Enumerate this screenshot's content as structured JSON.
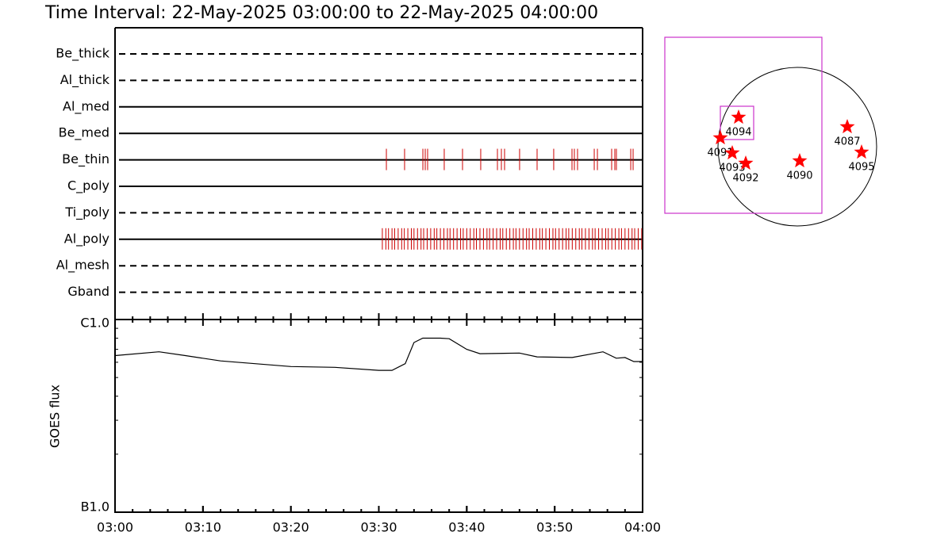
{
  "title": "Time Interval: 22-May-2025 03:00:00 to 22-May-2025 04:00:00",
  "chart_data": [
    {
      "type": "timeline",
      "xlim": [
        0,
        60
      ],
      "event_color": "#cc0000",
      "rows": [
        {
          "name": "Be_thick",
          "style": "dashed",
          "events": []
        },
        {
          "name": "Al_thick",
          "style": "dashed",
          "events": []
        },
        {
          "name": "Al_med",
          "style": "solid",
          "events": []
        },
        {
          "name": "Be_med",
          "style": "solid",
          "events": []
        },
        {
          "name": "Be_thin",
          "style": "solid",
          "events": [
            30.86,
            32.93,
            35.01,
            35.28,
            35.55,
            37.44,
            39.52,
            41.59,
            43.49,
            43.94,
            44.3,
            46.01,
            48.0,
            49.89,
            51.97,
            52.24,
            52.6,
            54.5,
            54.86,
            56.48,
            56.84,
            57.02,
            58.65,
            58.92
          ]
        },
        {
          "name": "C_poly",
          "style": "solid",
          "events": []
        },
        {
          "name": "Ti_poly",
          "style": "dashed",
          "events": []
        },
        {
          "name": "Al_poly",
          "style": "solid",
          "events": [
            30.4,
            30.8,
            31.1,
            31.5,
            31.8,
            32.2,
            32.6,
            32.9,
            33.3,
            33.7,
            34.0,
            34.4,
            34.8,
            35.1,
            35.5,
            35.9,
            36.3,
            36.6,
            37.0,
            37.4,
            37.8,
            38.1,
            38.5,
            38.9,
            39.3,
            39.6,
            40.0,
            40.4,
            40.8,
            41.1,
            41.5,
            41.9,
            42.3,
            42.6,
            43.0,
            43.4,
            43.8,
            44.1,
            44.5,
            44.9,
            45.3,
            45.6,
            46.0,
            46.4,
            46.8,
            47.1,
            47.5,
            47.9,
            48.3,
            48.6,
            49.0,
            49.4,
            49.8,
            50.1,
            50.5,
            50.9,
            51.3,
            51.6,
            52.0,
            52.4,
            52.8,
            53.1,
            53.5,
            53.9,
            54.3,
            54.6,
            55.0,
            55.4,
            55.8,
            56.1,
            56.5,
            56.9,
            57.3,
            57.6,
            58.0,
            58.4,
            58.8,
            59.1,
            59.5,
            59.9
          ]
        },
        {
          "name": "Al_mesh",
          "style": "dashed",
          "events": []
        },
        {
          "name": "Gband",
          "style": "dashed",
          "events": []
        }
      ]
    },
    {
      "type": "line",
      "ylabel": "GOES flux",
      "log_y": true,
      "color": "#000000",
      "x": [
        0,
        5,
        8,
        12,
        20,
        25,
        30,
        31.5,
        33,
        34,
        35,
        37,
        38,
        40,
        41.5,
        46,
        48,
        52,
        55.5,
        57,
        58,
        59,
        60
      ],
      "values": [
        6.5e-07,
        6.8e-07,
        6.5e-07,
        6.1e-07,
        5.7e-07,
        5.65e-07,
        5.45e-07,
        5.45e-07,
        5.9e-07,
        7.6e-07,
        8e-07,
        8e-07,
        7.95e-07,
        7e-07,
        6.65e-07,
        6.7e-07,
        6.4e-07,
        6.35e-07,
        6.8e-07,
        6.3e-07,
        6.35e-07,
        6.05e-07,
        6.05e-07
      ],
      "xlim": [
        0,
        60
      ],
      "xticks": [
        {
          "value": 0,
          "label": "03:00"
        },
        {
          "value": 10,
          "label": "03:10"
        },
        {
          "value": 20,
          "label": "03:20"
        },
        {
          "value": 30,
          "label": "03:30"
        },
        {
          "value": 40,
          "label": "03:40"
        },
        {
          "value": 50,
          "label": "03:50"
        },
        {
          "value": 60,
          "label": "04:00"
        }
      ],
      "ylim": [
        1e-07,
        1e-06
      ],
      "yticks": [
        {
          "value": 1e-07,
          "label": "B1.0"
        },
        {
          "value": 1e-06,
          "label": "C1.0"
        }
      ]
    },
    {
      "type": "map",
      "color": "#ff0000",
      "box_color": "#cc33cc",
      "fov": {
        "x": [
          -1.67,
          0.31
        ],
        "y": [
          -0.84,
          1.38
        ]
      },
      "subfield": {
        "x": [
          -0.97,
          -0.55
        ],
        "y": [
          0.09,
          0.51
        ]
      },
      "points": [
        {
          "label": "4094",
          "x": -0.74,
          "y": 0.37
        },
        {
          "label": "4091",
          "x": -0.97,
          "y": 0.11
        },
        {
          "label": "4093",
          "x": -0.82,
          "y": -0.08
        },
        {
          "label": "4092",
          "x": -0.65,
          "y": -0.21
        },
        {
          "label": "4090",
          "x": 0.03,
          "y": -0.18
        },
        {
          "label": "4087",
          "x": 0.63,
          "y": 0.25
        },
        {
          "label": "4095",
          "x": 0.81,
          "y": -0.07
        }
      ]
    }
  ]
}
